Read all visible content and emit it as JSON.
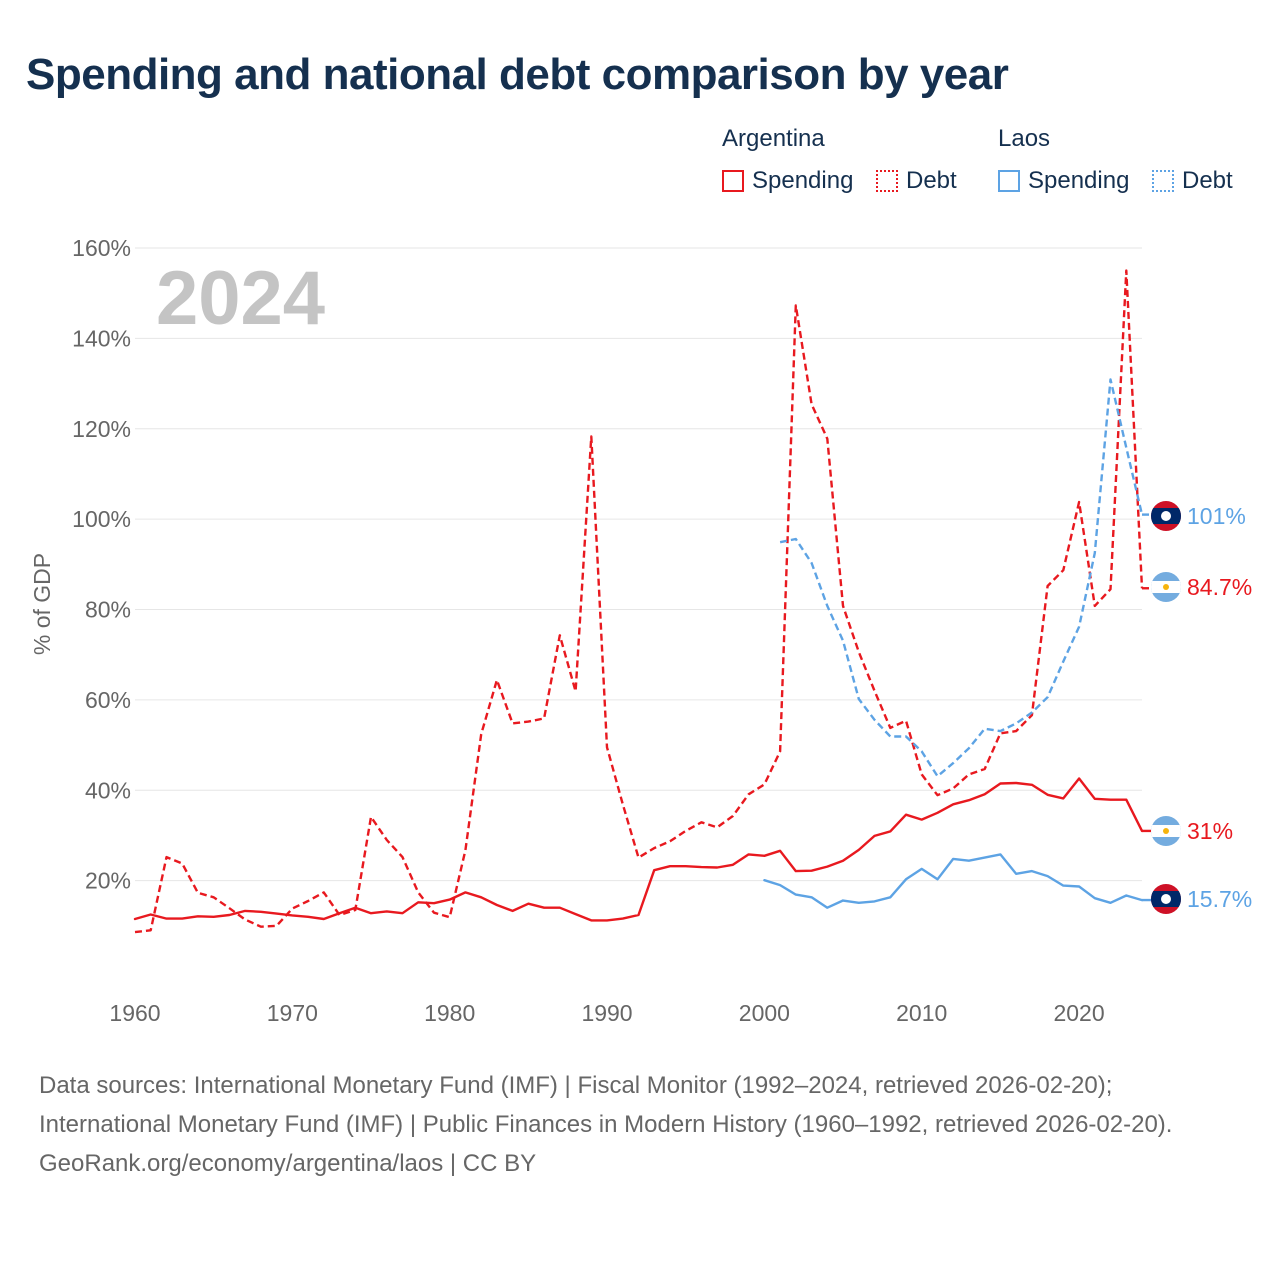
{
  "title": "Spending and national debt comparison by year",
  "legend": {
    "groups": [
      {
        "name": "Argentina",
        "color": "#e8191f",
        "items": [
          "Spending",
          "Debt"
        ]
      },
      {
        "name": "Laos",
        "color": "#5da3e4",
        "items": [
          "Spending",
          "Debt"
        ]
      }
    ]
  },
  "year_watermark": "2024",
  "chart_data": {
    "type": "line",
    "title": "Spending and national debt comparison by year",
    "xlabel": "",
    "ylabel": "% of GDP",
    "xlim": [
      1960,
      2024
    ],
    "ylim": [
      0,
      160
    ],
    "x_ticks": [
      1960,
      1970,
      1980,
      1990,
      2000,
      2010,
      2020
    ],
    "y_ticks": [
      20,
      40,
      60,
      80,
      100,
      120,
      140,
      160
    ],
    "y_tick_labels": [
      "20%",
      "40%",
      "60%",
      "80%",
      "100%",
      "120%",
      "140%",
      "160%"
    ],
    "grid": true,
    "series": [
      {
        "name": "Argentina Spending",
        "country": "Argentina",
        "metric": "Spending",
        "color": "#e8191f",
        "dash": "solid",
        "points": [
          [
            1960,
            11.5
          ],
          [
            1961,
            12.5
          ],
          [
            1962,
            11.6
          ],
          [
            1963,
            11.6
          ],
          [
            1964,
            12.1
          ],
          [
            1965,
            12.0
          ],
          [
            1966,
            12.4
          ],
          [
            1967,
            13.3
          ],
          [
            1968,
            13.1
          ],
          [
            1969,
            12.7
          ],
          [
            1970,
            12.3
          ],
          [
            1971,
            12.0
          ],
          [
            1972,
            11.5
          ],
          [
            1973,
            12.8
          ],
          [
            1974,
            14.0
          ],
          [
            1975,
            12.8
          ],
          [
            1976,
            13.2
          ],
          [
            1977,
            12.8
          ],
          [
            1978,
            15.2
          ],
          [
            1979,
            15.0
          ],
          [
            1980,
            15.8
          ],
          [
            1981,
            17.4
          ],
          [
            1982,
            16.3
          ],
          [
            1983,
            14.6
          ],
          [
            1984,
            13.3
          ],
          [
            1985,
            14.9
          ],
          [
            1986,
            14.0
          ],
          [
            1987,
            14.0
          ],
          [
            1988,
            12.6
          ],
          [
            1989,
            11.2
          ],
          [
            1990,
            11.2
          ],
          [
            1991,
            11.6
          ],
          [
            1992,
            12.4
          ],
          [
            1993,
            22.3
          ],
          [
            1994,
            23.2
          ],
          [
            1995,
            23.2
          ],
          [
            1996,
            23.0
          ],
          [
            1997,
            22.9
          ],
          [
            1998,
            23.5
          ],
          [
            1999,
            25.8
          ],
          [
            2000,
            25.5
          ],
          [
            2001,
            26.6
          ],
          [
            2002,
            22.1
          ],
          [
            2003,
            22.2
          ],
          [
            2004,
            23.1
          ],
          [
            2005,
            24.4
          ],
          [
            2006,
            26.8
          ],
          [
            2007,
            29.9
          ],
          [
            2008,
            30.9
          ],
          [
            2009,
            34.6
          ],
          [
            2010,
            33.5
          ],
          [
            2011,
            35.0
          ],
          [
            2012,
            36.9
          ],
          [
            2013,
            37.8
          ],
          [
            2014,
            39.1
          ],
          [
            2015,
            41.5
          ],
          [
            2016,
            41.6
          ],
          [
            2017,
            41.2
          ],
          [
            2018,
            39.0
          ],
          [
            2019,
            38.2
          ],
          [
            2020,
            42.6
          ],
          [
            2021,
            38.1
          ],
          [
            2022,
            37.9
          ],
          [
            2023,
            37.9
          ],
          [
            2024,
            31.0
          ]
        ],
        "end_label": "31%"
      },
      {
        "name": "Argentina Debt",
        "country": "Argentina",
        "metric": "Debt",
        "color": "#e8191f",
        "dash": "dashed",
        "points": [
          [
            1960,
            8.6
          ],
          [
            1961,
            9.0
          ],
          [
            1962,
            25.2
          ],
          [
            1963,
            23.8
          ],
          [
            1964,
            17.3
          ],
          [
            1965,
            16.3
          ],
          [
            1966,
            13.9
          ],
          [
            1967,
            11.4
          ],
          [
            1968,
            9.8
          ],
          [
            1969,
            10.0
          ],
          [
            1970,
            13.8
          ],
          [
            1971,
            15.5
          ],
          [
            1972,
            17.4
          ],
          [
            1973,
            12.4
          ],
          [
            1974,
            13.5
          ],
          [
            1975,
            34.1
          ],
          [
            1976,
            29.0
          ],
          [
            1977,
            25.2
          ],
          [
            1978,
            17.4
          ],
          [
            1979,
            12.9
          ],
          [
            1980,
            11.9
          ],
          [
            1981,
            26.7
          ],
          [
            1982,
            52.4
          ],
          [
            1983,
            64.4
          ],
          [
            1984,
            54.8
          ],
          [
            1985,
            55.2
          ],
          [
            1986,
            55.9
          ],
          [
            1987,
            74.3
          ],
          [
            1988,
            61.9
          ],
          [
            1989,
            118.3
          ],
          [
            1990,
            49.5
          ],
          [
            1991,
            36.9
          ],
          [
            1992,
            25.1
          ],
          [
            1993,
            27.2
          ],
          [
            1994,
            28.7
          ],
          [
            1995,
            31.0
          ],
          [
            1996,
            32.9
          ],
          [
            1997,
            31.8
          ],
          [
            1998,
            34.3
          ],
          [
            1999,
            39.1
          ],
          [
            2000,
            41.3
          ],
          [
            2001,
            48.6
          ],
          [
            2002,
            147.3
          ],
          [
            2003,
            125.4
          ],
          [
            2004,
            117.8
          ],
          [
            2005,
            80.8
          ],
          [
            2006,
            70.6
          ],
          [
            2007,
            62.0
          ],
          [
            2008,
            53.8
          ],
          [
            2009,
            55.4
          ],
          [
            2010,
            43.5
          ],
          [
            2011,
            38.9
          ],
          [
            2012,
            40.4
          ],
          [
            2013,
            43.5
          ],
          [
            2014,
            44.7
          ],
          [
            2015,
            52.6
          ],
          [
            2016,
            53.1
          ],
          [
            2017,
            56.6
          ],
          [
            2018,
            85.2
          ],
          [
            2019,
            88.7
          ],
          [
            2020,
            103.8
          ],
          [
            2021,
            80.8
          ],
          [
            2022,
            84.5
          ],
          [
            2023,
            155.0
          ],
          [
            2024,
            84.7
          ]
        ],
        "end_label": "84.7%"
      },
      {
        "name": "Laos Spending",
        "country": "Laos",
        "metric": "Spending",
        "color": "#5da3e4",
        "dash": "solid",
        "points": [
          [
            2000,
            20.1
          ],
          [
            2001,
            19.0
          ],
          [
            2002,
            16.9
          ],
          [
            2003,
            16.3
          ],
          [
            2004,
            14.0
          ],
          [
            2005,
            15.6
          ],
          [
            2006,
            15.1
          ],
          [
            2007,
            15.4
          ],
          [
            2008,
            16.3
          ],
          [
            2009,
            20.3
          ],
          [
            2010,
            22.6
          ],
          [
            2011,
            20.3
          ],
          [
            2012,
            24.8
          ],
          [
            2013,
            24.4
          ],
          [
            2014,
            25.1
          ],
          [
            2015,
            25.8
          ],
          [
            2016,
            21.5
          ],
          [
            2017,
            22.1
          ],
          [
            2018,
            21.0
          ],
          [
            2019,
            18.9
          ],
          [
            2020,
            18.7
          ],
          [
            2021,
            16.1
          ],
          [
            2022,
            15.1
          ],
          [
            2023,
            16.7
          ],
          [
            2024,
            15.7
          ]
        ],
        "end_label": "15.7%"
      },
      {
        "name": "Laos Debt",
        "country": "Laos",
        "metric": "Debt",
        "color": "#5da3e4",
        "dash": "dashed",
        "points": [
          [
            2001,
            94.9
          ],
          [
            2002,
            95.6
          ],
          [
            2003,
            90.3
          ],
          [
            2004,
            80.8
          ],
          [
            2005,
            73.1
          ],
          [
            2006,
            60.2
          ],
          [
            2007,
            55.6
          ],
          [
            2008,
            51.9
          ],
          [
            2009,
            51.9
          ],
          [
            2010,
            48.6
          ],
          [
            2011,
            43.1
          ],
          [
            2012,
            46.0
          ],
          [
            2013,
            49.3
          ],
          [
            2014,
            53.6
          ],
          [
            2015,
            53.1
          ],
          [
            2016,
            54.8
          ],
          [
            2017,
            57.2
          ],
          [
            2018,
            60.6
          ],
          [
            2019,
            68.5
          ],
          [
            2020,
            76.2
          ],
          [
            2021,
            92.5
          ],
          [
            2022,
            130.9
          ],
          [
            2023,
            115.8
          ],
          [
            2024,
            101.0
          ]
        ],
        "end_label": "101%"
      }
    ]
  },
  "footer": {
    "sources": "Data sources: International Monetary Fund (IMF) | Fiscal Monitor (1992–2024, retrieved 2026-02-20); International Monetary Fund (IMF) | Public Finances in Modern History (1960–1992, retrieved 2026-02-20).",
    "credit": "GeoRank.org/economy/argentina/laos | CC BY"
  }
}
